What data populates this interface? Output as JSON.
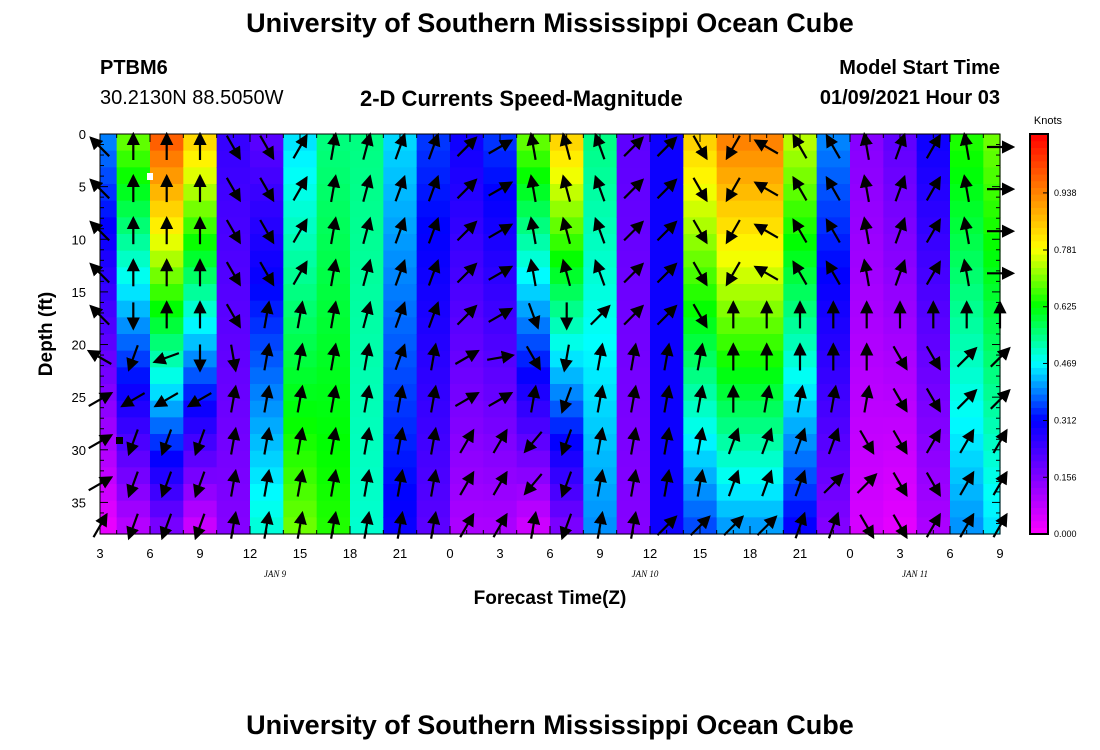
{
  "header": {
    "title_top": "University of Southern Mississippi Ocean Cube",
    "title_bottom": "University of Southern Mississippi Ocean Cube",
    "station_id": "PTBM6",
    "station_coords": "30.2130N 88.5050W",
    "subtitle": "2-D Currents Speed-Magnitude",
    "model_start_label": "Model Start Time",
    "model_start_value": "01/09/2021 Hour 03"
  },
  "chart_data": {
    "type": "heatmap",
    "title": "2-D Currents Speed-Magnitude",
    "xlabel": "Forecast Time(Z)",
    "ylabel": "Depth (ft)",
    "x_tick_labels": [
      "3",
      "6",
      "9",
      "12",
      "15",
      "18",
      "21",
      "0",
      "3",
      "6",
      "9",
      "12",
      "15",
      "18",
      "21",
      "0",
      "3",
      "6",
      "9"
    ],
    "date_labels": [
      {
        "label": "JAN 9",
        "at_tick": 3.5
      },
      {
        "label": "JAN 10",
        "at_tick": 10.9
      },
      {
        "label": "JAN 11",
        "at_tick": 16.3
      }
    ],
    "x_range_hours": [
      3,
      57
    ],
    "y_ticks": [
      0,
      5,
      10,
      15,
      20,
      25,
      30,
      35
    ],
    "ylim": [
      0,
      38
    ],
    "y_inverted": true,
    "colorbar": {
      "units": "Knots",
      "ticks": [
        "0.000",
        "0.156",
        "0.312",
        "0.469",
        "0.625",
        "0.781",
        "0.938"
      ],
      "range": [
        0,
        1.1
      ],
      "colors": [
        "#ff00ff",
        "#8000ff",
        "#0000ff",
        "#00ffff",
        "#00ff00",
        "#ffff00",
        "#ff8000",
        "#ff0000"
      ]
    },
    "time_columns": [
      {
        "t": 3,
        "surface": 0.4,
        "bottom": 0.02
      },
      {
        "t": 5,
        "surface": 0.7,
        "bottom": 0.08
      },
      {
        "t": 7,
        "surface": 1.0,
        "bottom": 0.15
      },
      {
        "t": 9,
        "surface": 0.85,
        "bottom": 0.05
      },
      {
        "t": 11,
        "surface": 0.25,
        "bottom": 0.15
      },
      {
        "t": 13,
        "surface": 0.2,
        "bottom": 0.5
      },
      {
        "t": 15,
        "surface": 0.45,
        "bottom": 0.7
      },
      {
        "t": 17,
        "surface": 0.55,
        "bottom": 0.65
      },
      {
        "t": 19,
        "surface": 0.55,
        "bottom": 0.5
      },
      {
        "t": 21,
        "surface": 0.45,
        "bottom": 0.3
      },
      {
        "t": 23,
        "surface": 0.35,
        "bottom": 0.2
      },
      {
        "t": 25,
        "surface": 0.3,
        "bottom": 0.1
      },
      {
        "t": 27,
        "surface": 0.35,
        "bottom": 0.1
      },
      {
        "t": 29,
        "surface": 0.7,
        "bottom": 0.05
      },
      {
        "t": 31,
        "surface": 0.85,
        "bottom": 0.15
      },
      {
        "t": 33,
        "surface": 0.55,
        "bottom": 0.4
      },
      {
        "t": 35,
        "surface": 0.2,
        "bottom": 0.15
      },
      {
        "t": 37,
        "surface": 0.3,
        "bottom": 0.3
      },
      {
        "t": 39,
        "surface": 0.85,
        "bottom": 0.35
      },
      {
        "t": 41,
        "surface": 0.95,
        "bottom": 0.4
      },
      {
        "t": 43,
        "surface": 0.95,
        "bottom": 0.4
      },
      {
        "t": 45,
        "surface": 0.75,
        "bottom": 0.3
      },
      {
        "t": 47,
        "surface": 0.4,
        "bottom": 0.15
      },
      {
        "t": 49,
        "surface": 0.15,
        "bottom": 0.05
      },
      {
        "t": 51,
        "surface": 0.2,
        "bottom": 0.03
      },
      {
        "t": 53,
        "surface": 0.3,
        "bottom": 0.1
      },
      {
        "t": 55,
        "surface": 0.65,
        "bottom": 0.4
      },
      {
        "t": 57,
        "surface": 0.7,
        "bottom": 0.45
      }
    ],
    "vector_rows_ft": [
      0,
      4,
      8,
      12,
      16,
      20,
      24,
      28,
      32,
      36
    ],
    "vector_directions_deg": [
      [
        315,
        0,
        0,
        0,
        150,
        150,
        30,
        10,
        15,
        20,
        20,
        45,
        60,
        350,
        345,
        340,
        45,
        45,
        150,
        210,
        300,
        330,
        330,
        350,
        20,
        30,
        350,
        90
      ],
      [
        315,
        0,
        0,
        0,
        150,
        150,
        30,
        10,
        15,
        20,
        20,
        45,
        60,
        350,
        345,
        340,
        45,
        45,
        150,
        210,
        300,
        330,
        330,
        350,
        20,
        30,
        350,
        90
      ],
      [
        315,
        0,
        0,
        0,
        150,
        150,
        30,
        10,
        15,
        20,
        20,
        45,
        60,
        350,
        345,
        340,
        45,
        45,
        150,
        210,
        300,
        330,
        330,
        350,
        20,
        30,
        350,
        90
      ],
      [
        315,
        0,
        0,
        0,
        150,
        150,
        30,
        10,
        15,
        20,
        20,
        45,
        60,
        350,
        345,
        340,
        45,
        45,
        150,
        210,
        300,
        330,
        330,
        350,
        20,
        30,
        350,
        90
      ],
      [
        315,
        180,
        0,
        0,
        150,
        10,
        10,
        10,
        15,
        20,
        20,
        45,
        60,
        160,
        180,
        45,
        45,
        45,
        150,
        0,
        0,
        0,
        0,
        0,
        0,
        0,
        0,
        0
      ],
      [
        300,
        200,
        250,
        180,
        170,
        10,
        10,
        10,
        10,
        20,
        10,
        60,
        80,
        150,
        190,
        10,
        10,
        10,
        10,
        0,
        0,
        0,
        0,
        0,
        150,
        150,
        45,
        45
      ],
      [
        60,
        240,
        240,
        240,
        10,
        10,
        10,
        10,
        10,
        10,
        10,
        60,
        60,
        10,
        200,
        10,
        10,
        10,
        10,
        0,
        10,
        10,
        10,
        10,
        150,
        150,
        45,
        45
      ],
      [
        60,
        200,
        200,
        200,
        10,
        10,
        10,
        10,
        10,
        10,
        10,
        30,
        30,
        220,
        200,
        10,
        10,
        10,
        10,
        20,
        20,
        20,
        20,
        150,
        150,
        30,
        30,
        30
      ],
      [
        60,
        200,
        200,
        200,
        10,
        10,
        10,
        10,
        10,
        10,
        10,
        30,
        30,
        220,
        200,
        10,
        10,
        10,
        10,
        20,
        20,
        20,
        45,
        45,
        150,
        150,
        30,
        30
      ],
      [
        30,
        200,
        200,
        200,
        10,
        10,
        10,
        10,
        10,
        10,
        10,
        30,
        30,
        10,
        200,
        10,
        10,
        45,
        45,
        45,
        45,
        20,
        20,
        150,
        150,
        30,
        30,
        30
      ]
    ]
  }
}
